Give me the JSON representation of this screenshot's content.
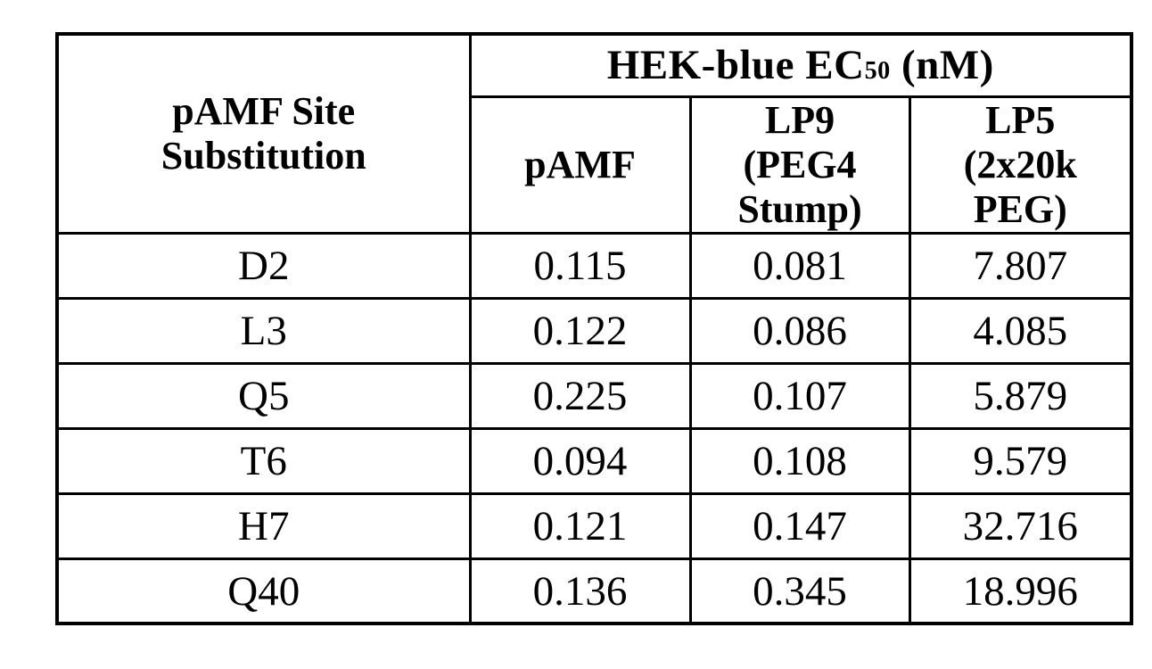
{
  "figure": {
    "background": "#ffffff",
    "border_color": "#000000",
    "text_color": "#000000"
  },
  "table": {
    "row_header": {
      "line1": "pAMF Site",
      "line2": "Substitution"
    },
    "group_header": {
      "prefix": "HEK-blue EC",
      "subscript": "50",
      "suffix": " (nM)"
    },
    "col_headers": [
      {
        "lines": [
          "pAMF",
          "",
          ""
        ]
      },
      {
        "lines": [
          "LP9",
          "(PEG4",
          "Stump)"
        ]
      },
      {
        "lines": [
          "LP5",
          "(2x20k",
          "PEG)"
        ]
      }
    ],
    "rows": [
      {
        "site": "D2",
        "pamf": "0.115",
        "lp9": "0.081",
        "lp5": "7.807"
      },
      {
        "site": "L3",
        "pamf": "0.122",
        "lp9": "0.086",
        "lp5": "4.085"
      },
      {
        "site": "Q5",
        "pamf": "0.225",
        "lp9": "0.107",
        "lp5": "5.879"
      },
      {
        "site": "T6",
        "pamf": "0.094",
        "lp9": "0.108",
        "lp5": "9.579"
      },
      {
        "site": "H7",
        "pamf": "0.121",
        "lp9": "0.147",
        "lp5": "32.716"
      },
      {
        "site": "Q40",
        "pamf": "0.136",
        "lp9": "0.345",
        "lp5": "18.996"
      }
    ]
  },
  "chart_data": {
    "type": "table",
    "group_header": "HEK-blue EC50 (nM)",
    "columns": [
      "pAMF Site Substitution",
      "pAMF",
      "LP9 (PEG4 Stump)",
      "LP5 (2x20k PEG)"
    ],
    "rows": [
      [
        "D2",
        0.115,
        0.081,
        7.807
      ],
      [
        "L3",
        0.122,
        0.086,
        4.085
      ],
      [
        "Q5",
        0.225,
        0.107,
        5.879
      ],
      [
        "T6",
        0.094,
        0.108,
        9.579
      ],
      [
        "H7",
        0.121,
        0.147,
        32.716
      ],
      [
        "Q40",
        0.136,
        0.345,
        18.996
      ]
    ]
  }
}
